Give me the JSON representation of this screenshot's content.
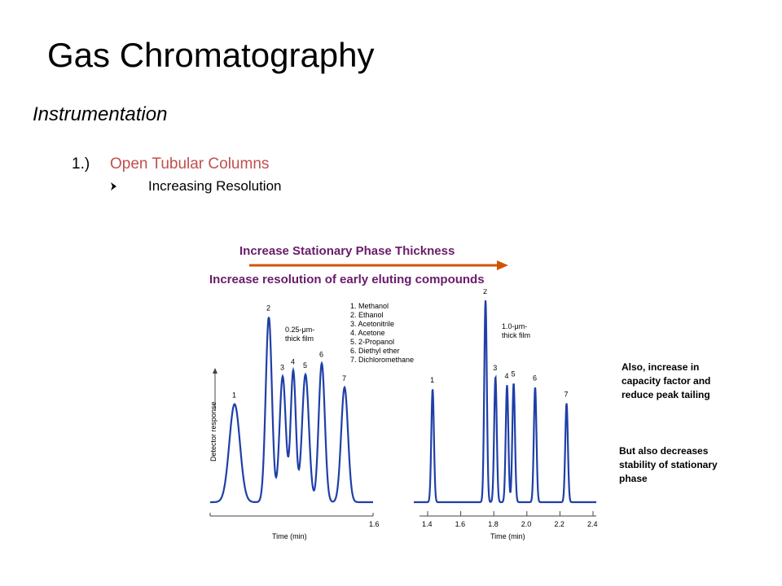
{
  "slide": {
    "title": "Gas Chromatography",
    "section": "Instrumentation",
    "list_number": "1.)",
    "list_heading": "Open Tubular Columns",
    "bullet": "Increasing Resolution"
  },
  "caption": {
    "top": "Increase Stationary Phase Thickness",
    "bottom": "Increase resolution of early eluting compounds"
  },
  "notes": {
    "note_1": "Also, increase in\ncapacity factor and\nreduce peak tailing",
    "note_2": "But also decreases\nstability of stationary\nphase"
  },
  "colors": {
    "accent_red": "#c0504d",
    "caption_purple": "#6a1b6a",
    "arrow": "#d35400",
    "trace": "#1f3fa8"
  },
  "chart_data": [
    {
      "type": "line",
      "film_label": [
        "0.25-μm-",
        "thick film"
      ],
      "ylabel": "Detector response",
      "xlabel": "Time (min)",
      "tick_labels": [
        "1.6"
      ],
      "legend": [
        "1. Methanol",
        "2. Ethanol",
        "3. Acetonitrile",
        "4. Acetone",
        "5. 2-Propanol",
        "6. Diethyl ether",
        "7. Dichloromethane"
      ],
      "peaks": [
        {
          "label": "1",
          "height": 0.53
        },
        {
          "label": "2",
          "height": 1.0
        },
        {
          "label": "3",
          "height": 0.68
        },
        {
          "label": "4",
          "height": 0.71
        },
        {
          "label": "5",
          "height": 0.69
        },
        {
          "label": "6",
          "height": 0.75
        },
        {
          "label": "7",
          "height": 0.62
        }
      ]
    },
    {
      "type": "line",
      "film_label": [
        "1.0-μm-",
        "thick film"
      ],
      "xlabel": "Time (min)",
      "xlim": [
        1.4,
        2.4
      ],
      "tick_labels": [
        "1.4",
        "1.6",
        "1.8",
        "2.0",
        "2.2",
        "2.4"
      ],
      "peaks": [
        {
          "label": "1",
          "time": 1.43,
          "height": 0.56
        },
        {
          "label": "2",
          "time": 1.75,
          "height": 1.0
        },
        {
          "label": "3",
          "time": 1.81,
          "height": 0.62
        },
        {
          "label": "4",
          "time": 1.88,
          "height": 0.58
        },
        {
          "label": "5",
          "time": 1.92,
          "height": 0.59
        },
        {
          "label": "6",
          "time": 2.05,
          "height": 0.57
        },
        {
          "label": "7",
          "time": 2.24,
          "height": 0.49
        }
      ]
    }
  ]
}
